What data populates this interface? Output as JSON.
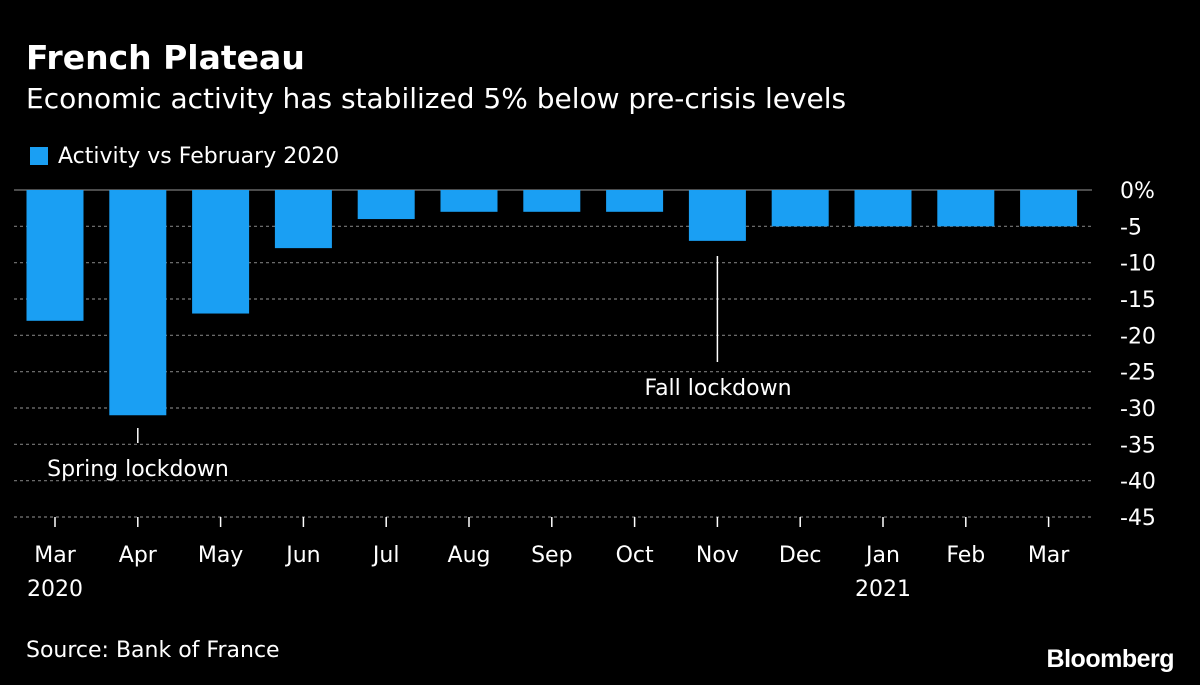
{
  "header": {
    "title": "French Plateau",
    "subtitle": "Economic activity has stabilized 5% below pre-crisis levels"
  },
  "footer": {
    "source": "Source: Bank of France",
    "brand": "Bloomberg"
  },
  "colors": {
    "background": "#000000",
    "bar": "#1a9ff3",
    "gridline": "#7a7a7a",
    "text": "#ffffff"
  },
  "chart_data": {
    "type": "bar",
    "categories": [
      "Mar",
      "Apr",
      "May",
      "Jun",
      "Jul",
      "Aug",
      "Sep",
      "Oct",
      "Nov",
      "Dec",
      "Jan",
      "Feb",
      "Mar"
    ],
    "year_labels": [
      "2020",
      "",
      "",
      "",
      "",
      "",
      "",
      "",
      "",
      "",
      "2021",
      "",
      ""
    ],
    "series": [
      {
        "name": "Activity vs February 2020",
        "values": [
          -18,
          -31,
          -17,
          -8,
          -4,
          -3,
          -3,
          -3,
          -7,
          -5,
          -5,
          -5,
          -5
        ]
      }
    ],
    "ylim": [
      -45,
      0
    ],
    "y_ticks": [
      0,
      -5,
      -10,
      -15,
      -20,
      -25,
      -30,
      -35,
      -40,
      -45
    ],
    "y_tick_labels": [
      "0%",
      "-5",
      "-10",
      "-15",
      "-20",
      "-25",
      "-30",
      "-35",
      "-40",
      "-45"
    ],
    "y_axis_side": "right",
    "grid": true,
    "legend": "top-left",
    "annotations": [
      {
        "text": "Spring lockdown",
        "category_index": 1
      },
      {
        "text": "Fall lockdown",
        "category_index": 8
      }
    ]
  }
}
